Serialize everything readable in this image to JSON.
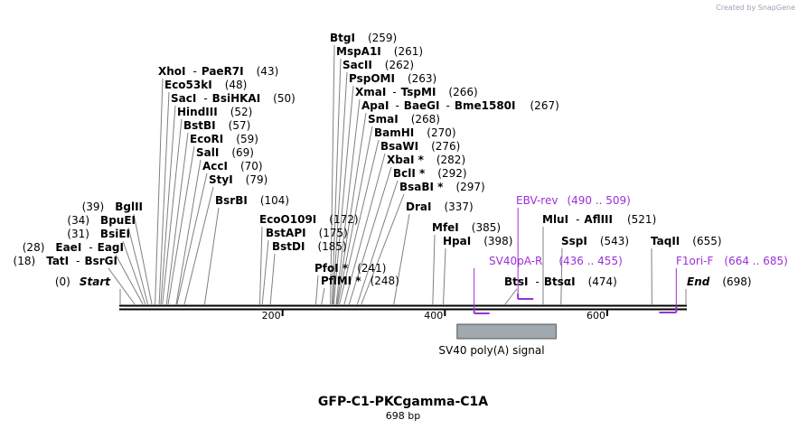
{
  "watermark": "Created by SnapGene",
  "map": {
    "name": "GFP-C1-PKCgamma-C1A",
    "length_label": "698 bp",
    "length": 698,
    "ticks": [
      {
        "label": "200",
        "value": 200
      },
      {
        "label": "400",
        "value": 400
      },
      {
        "label": "600",
        "value": 600
      }
    ]
  },
  "sites": [
    {
      "names": [
        "BtgI"
      ],
      "pos": "(259)",
      "value": 259
    },
    {
      "names": [
        "MspA1I"
      ],
      "pos": "(261)",
      "value": 261
    },
    {
      "names": [
        "SacII"
      ],
      "pos": "(262)",
      "value": 262
    },
    {
      "names": [
        "PspOMI"
      ],
      "pos": "(263)",
      "value": 263
    },
    {
      "names": [
        "XmaI",
        "TspMI"
      ],
      "pos": "(266)",
      "value": 266
    },
    {
      "names": [
        "ApaI",
        "BaeGI",
        "Bme1580I"
      ],
      "pos": "(267)",
      "value": 267
    },
    {
      "names": [
        "SmaI"
      ],
      "pos": "(268)",
      "value": 268
    },
    {
      "names": [
        "BamHI"
      ],
      "pos": "(270)",
      "value": 270
    },
    {
      "names": [
        "BsaWI"
      ],
      "pos": "(276)",
      "value": 276
    },
    {
      "names": [
        "XbaI *"
      ],
      "pos": "(282)",
      "value": 282
    },
    {
      "names": [
        "BclI *"
      ],
      "pos": "(292)",
      "value": 292
    },
    {
      "names": [
        "BsaBI *"
      ],
      "pos": "(297)",
      "value": 297
    },
    {
      "names": [
        "DraI"
      ],
      "pos": "(337)",
      "value": 337
    },
    {
      "names": [
        "XhoI",
        "PaeR7I"
      ],
      "pos": "(43)",
      "value": 43
    },
    {
      "names": [
        "Eco53kI"
      ],
      "pos": "(48)",
      "value": 48
    },
    {
      "names": [
        "SacI",
        "BsiHKAI"
      ],
      "pos": "(50)",
      "value": 50
    },
    {
      "names": [
        "HindIII"
      ],
      "pos": "(52)",
      "value": 52
    },
    {
      "names": [
        "BstBI"
      ],
      "pos": "(57)",
      "value": 57
    },
    {
      "names": [
        "EcoRI"
      ],
      "pos": "(59)",
      "value": 59
    },
    {
      "names": [
        "SalI"
      ],
      "pos": "(69)",
      "value": 69
    },
    {
      "names": [
        "AccI"
      ],
      "pos": "(70)",
      "value": 70
    },
    {
      "names": [
        "StyI"
      ],
      "pos": "(79)",
      "value": 79
    },
    {
      "names": [
        "BsrBI"
      ],
      "pos": "(104)",
      "value": 104
    },
    {
      "names": [
        "BglII"
      ],
      "pos": "(39)",
      "value": 39
    },
    {
      "names": [
        "BpuEI"
      ],
      "pos": "(34)",
      "value": 34
    },
    {
      "names": [
        "BsiEI"
      ],
      "pos": "(31)",
      "value": 31
    },
    {
      "names": [
        "EaeI",
        "EagI"
      ],
      "pos": "(28)",
      "value": 28
    },
    {
      "names": [
        "TatI",
        "BsrGI"
      ],
      "pos": "(18)",
      "value": 18
    },
    {
      "names": [
        "EcoO109I"
      ],
      "pos": "(172)",
      "value": 172
    },
    {
      "names": [
        "BstAPI"
      ],
      "pos": "(175)",
      "value": 175
    },
    {
      "names": [
        "BstDI"
      ],
      "pos": "(185)",
      "value": 185
    },
    {
      "names": [
        "PfoI *"
      ],
      "pos": "(241)",
      "value": 241
    },
    {
      "names": [
        "PflMI *"
      ],
      "pos": "(248)",
      "value": 248
    },
    {
      "names": [
        "MfeI"
      ],
      "pos": "(385)",
      "value": 385
    },
    {
      "names": [
        "HpaI"
      ],
      "pos": "(398)",
      "value": 398
    },
    {
      "names": [
        "MluI",
        "AflIII"
      ],
      "pos": "(521)",
      "value": 521
    },
    {
      "names": [
        "SspI"
      ],
      "pos": "(543)",
      "value": 543
    },
    {
      "names": [
        "BtsI",
        "BtsαI"
      ],
      "pos": "(474)",
      "value": 474
    },
    {
      "names": [
        "TaqII"
      ],
      "pos": "(655)",
      "value": 655
    }
  ],
  "ends": [
    {
      "name": "Start",
      "pos": "(0)",
      "value": 0
    },
    {
      "name": "End",
      "pos": "(698)",
      "value": 698
    }
  ],
  "primers": [
    {
      "name": "EBV-rev",
      "range": "(490 .. 509)",
      "start": 490,
      "end": 509
    },
    {
      "name": "SV40pA-R",
      "range": "(436 .. 455)",
      "start": 436,
      "end": 455
    },
    {
      "name": "F1ori-F",
      "range": "(664 .. 685)",
      "start": 664,
      "end": 685
    }
  ],
  "features": [
    {
      "name": "SV40 poly(A) signal",
      "start": 415,
      "end": 537,
      "color": "#a0a8b0"
    }
  ],
  "colors": {
    "primer": "#9b30d9",
    "backbone": "#000000",
    "feature": "#a0a8b0"
  }
}
